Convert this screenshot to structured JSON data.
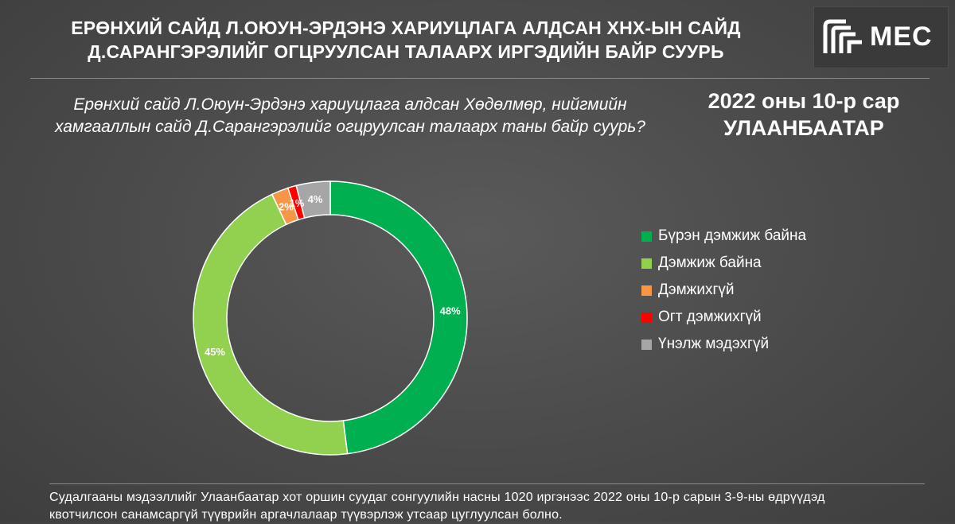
{
  "header": {
    "title_line1": "ЕРӨНХИЙ САЙД Л.ОЮУН-ЭРДЭНЭ ХАРИУЦЛАГА АЛДСАН ХНХ-ЫН САЙД",
    "title_line2": "Д.САРАНГЭРЭЛИЙГ ОГЦРУУЛСАН ТАЛААРХ ИРГЭДИЙН БАЙР СУУРЬ",
    "logo_text": "MEC"
  },
  "question": {
    "line1": "Ерөнхий сайд Л.Оюун-Эрдэнэ хариуцлага алдсан Хөдөлмөр, нийгмийн",
    "line2": "хамгааллын сайд Д.Сарангэрэлийг огцруулсан талаарх таны байр суурь?"
  },
  "date_loc": {
    "date": "2022 оны 10-р сар",
    "location": "УЛААНБААТАР"
  },
  "chart_data": {
    "type": "pie",
    "donut": true,
    "categories": [
      "Бүрэн дэмжиж байна",
      "Дэмжиж байна",
      "Дэмжихгүй",
      "Огт дэмжихгүй",
      "Үнэлж мэдэхгүй"
    ],
    "values": [
      48,
      45,
      2,
      1,
      4
    ],
    "labels": [
      "48%",
      "45%",
      "2%",
      "1%",
      "4%"
    ],
    "colors": [
      "#00b050",
      "#92d050",
      "#f79646",
      "#ff0000",
      "#a6a6a6"
    ],
    "legend_position": "right"
  },
  "footer": {
    "line1": "Судалгааны мэдээллийг Улаанбаатар хот оршин суудаг сонгуулийн насны 1020 иргэнээс 2022 оны 10-р сарын 3-9-ны өдрүүдэд",
    "line2": "квотчилсон санамсаргүй түүврийн аргачлалаар түүвэрлэж утсаар цуглуулсан болно."
  }
}
